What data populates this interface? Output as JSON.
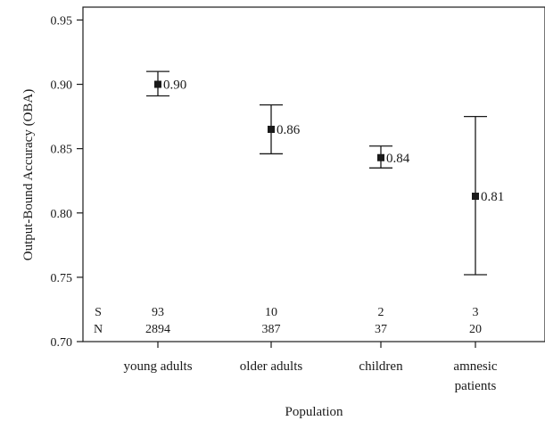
{
  "chart_data": {
    "type": "scatter",
    "subtype": "point-with-error-bars",
    "title": "",
    "xlabel": "Population",
    "ylabel": "Output-Bound Accuracy (OBA)",
    "ylim": [
      0.7,
      0.96
    ],
    "yticks": [
      "0.70",
      "0.75",
      "0.80",
      "0.85",
      "0.90",
      "0.95"
    ],
    "grid": false,
    "legend": "none",
    "categories": [
      {
        "lines": [
          "young adults"
        ]
      },
      {
        "lines": [
          "older adults"
        ]
      },
      {
        "lines": [
          "children"
        ]
      },
      {
        "lines": [
          "amnesic",
          "patients"
        ]
      }
    ],
    "series": [
      {
        "values": [
          0.9,
          0.865,
          0.843,
          0.813
        ],
        "labels": [
          "0.90",
          "0.86",
          "0.84",
          "0.81"
        ],
        "error_low": [
          0.891,
          0.846,
          0.835,
          0.752
        ],
        "error_high": [
          0.91,
          0.884,
          0.852,
          0.875
        ]
      }
    ],
    "counts": {
      "S": {
        "label": "S",
        "values": [
          "93",
          "10",
          "2",
          "3"
        ]
      },
      "N": {
        "label": "N",
        "values": [
          "2894",
          "387",
          "37",
          "20"
        ]
      }
    },
    "colors": {
      "marks": "#1a1a1a",
      "axis": "#1a1a1a",
      "background": "#ffffff"
    }
  }
}
